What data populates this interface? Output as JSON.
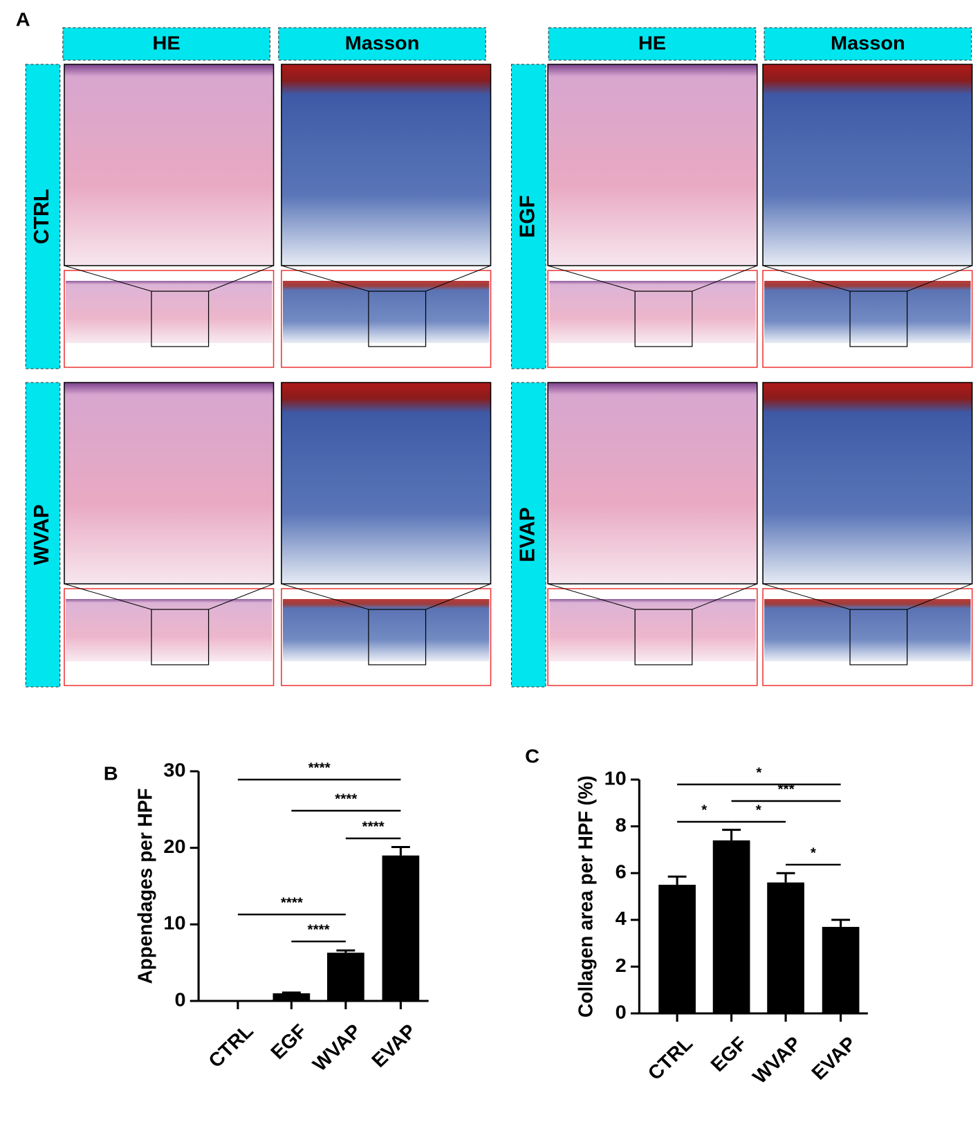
{
  "panel_a": {
    "label": "A",
    "stain_headers": [
      "HE",
      "Masson"
    ],
    "groups": [
      "CTRL",
      "EGF",
      "WVAP",
      "EVAP"
    ]
  },
  "chart_data": [
    {
      "type": "bar",
      "panel_label": "B",
      "ylabel": "Appendages per HPF",
      "color": "#000000",
      "categories": [
        "CTRL",
        "EGF",
        "WVAP",
        "EVAP"
      ],
      "values": [
        0,
        1,
        6.3,
        19
      ],
      "errors": [
        0,
        0.1,
        0.3,
        1.1
      ],
      "ylim": [
        0,
        30
      ],
      "yticks": [
        0,
        10,
        20,
        30
      ],
      "annotations": [
        {
          "from": "CTRL",
          "to": "EVAP",
          "text": "****"
        },
        {
          "from": "EGF",
          "to": "EVAP",
          "text": "****"
        },
        {
          "from": "WVAP",
          "to": "EVAP",
          "text": "****"
        },
        {
          "from": "CTRL",
          "to": "WVAP",
          "text": "****"
        },
        {
          "from": "EGF",
          "to": "WVAP",
          "text": "****"
        }
      ]
    },
    {
      "type": "bar",
      "panel_label": "C",
      "ylabel": "Collagen area per HPF (%)",
      "color": "#000000",
      "categories": [
        "CTRL",
        "EGF",
        "WVAP",
        "EVAP"
      ],
      "values": [
        5.5,
        7.4,
        5.6,
        3.7
      ],
      "errors": [
        0.35,
        0.45,
        0.4,
        0.3
      ],
      "ylim": [
        0,
        10
      ],
      "yticks": [
        0,
        2,
        4,
        6,
        8,
        10
      ],
      "annotations": [
        {
          "from": "CTRL",
          "to": "EVAP",
          "text": "*"
        },
        {
          "from": "EGF",
          "to": "EVAP",
          "text": "***"
        },
        {
          "from": "CTRL",
          "to": "EGF",
          "text": "*"
        },
        {
          "from": "EGF",
          "to": "WVAP",
          "text": "*"
        },
        {
          "from": "WVAP",
          "to": "EVAP",
          "text": "*"
        }
      ]
    }
  ]
}
